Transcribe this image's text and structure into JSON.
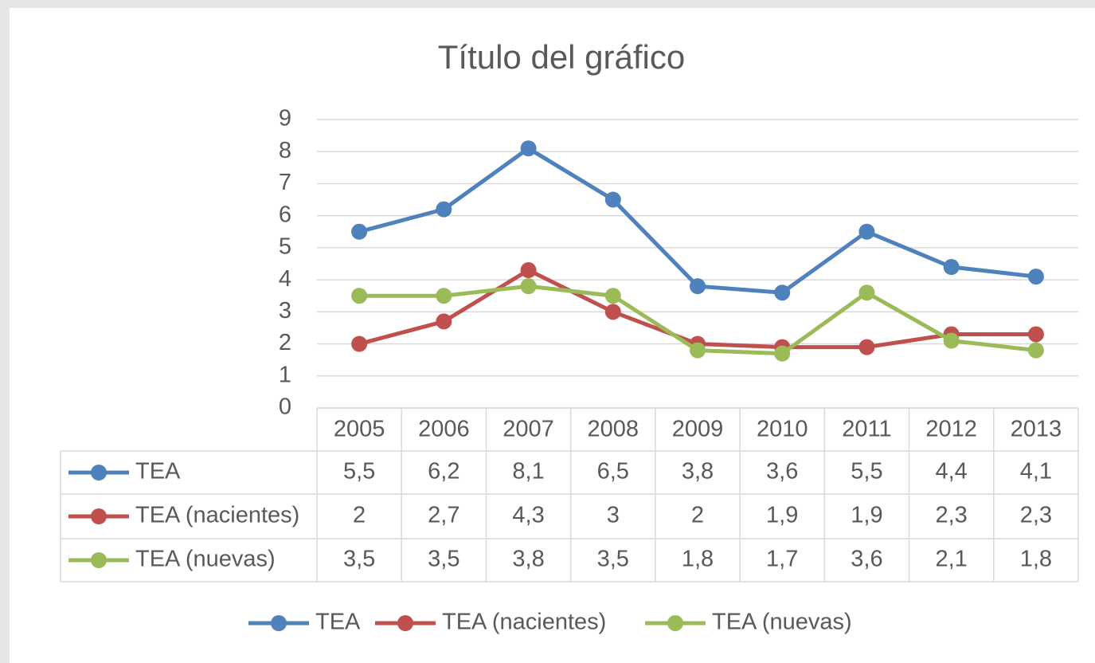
{
  "chart_data": {
    "type": "line",
    "title": "Título del gráfico",
    "categories": [
      "2005",
      "2006",
      "2007",
      "2008",
      "2009",
      "2010",
      "2011",
      "2012",
      "2013"
    ],
    "series": [
      {
        "name": "TEA",
        "color": "#4f81bd",
        "values": [
          5.5,
          6.2,
          8.1,
          6.5,
          3.8,
          3.6,
          5.5,
          4.4,
          4.1
        ],
        "value_labels": [
          "5,5",
          "6,2",
          "8,1",
          "6,5",
          "3,8",
          "3,6",
          "5,5",
          "4,4",
          "4,1"
        ]
      },
      {
        "name": "TEA (nacientes)",
        "color": "#c0504d",
        "values": [
          2,
          2.7,
          4.3,
          3,
          2,
          1.9,
          1.9,
          2.3,
          2.3
        ],
        "value_labels": [
          "2",
          "2,7",
          "4,3",
          "3",
          "2",
          "1,9",
          "1,9",
          "2,3",
          "2,3"
        ]
      },
      {
        "name": "TEA (nuevas)",
        "color": "#9bbb59",
        "values": [
          3.5,
          3.5,
          3.8,
          3.5,
          1.8,
          1.7,
          3.6,
          2.1,
          1.8
        ],
        "value_labels": [
          "3,5",
          "3,5",
          "3,8",
          "3,5",
          "1,8",
          "1,7",
          "3,6",
          "2,1",
          "1,8"
        ]
      }
    ],
    "ylim": [
      0,
      9
    ],
    "yticks": [
      0,
      1,
      2,
      3,
      4,
      5,
      6,
      7,
      8,
      9
    ],
    "grid": true,
    "legend": "bottom",
    "data_table": true
  }
}
